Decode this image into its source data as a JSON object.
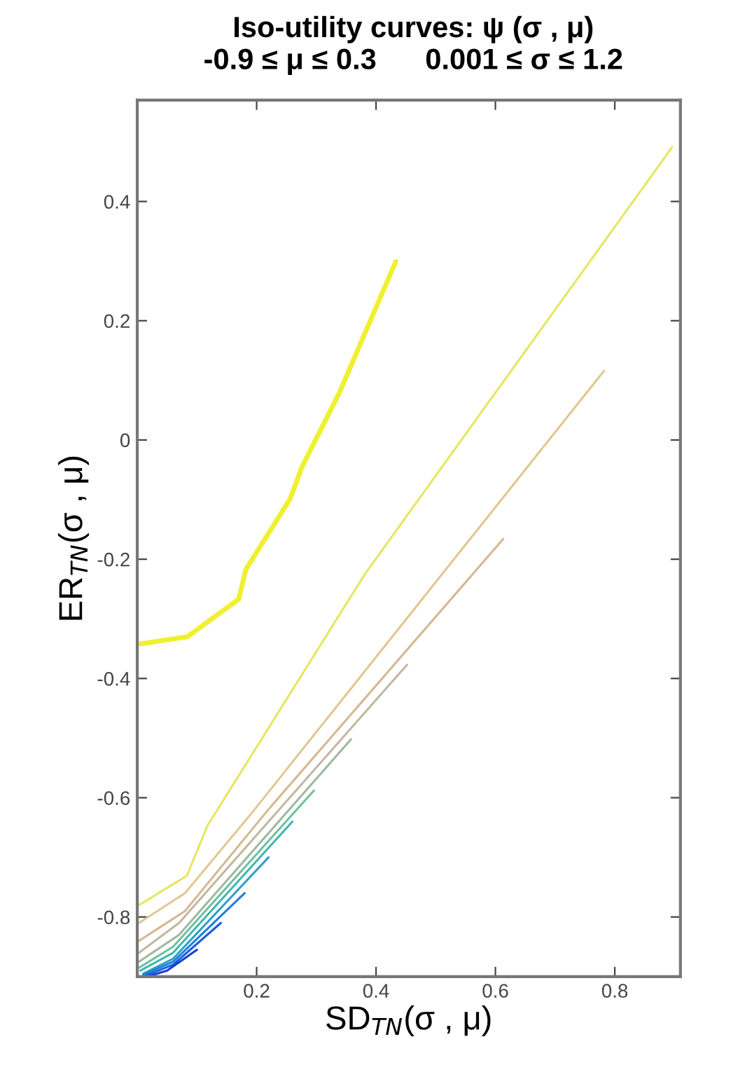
{
  "chart_data": {
    "type": "line",
    "title": "Iso-utility curves: ψ (σ , μ)",
    "subtitle": "-0.9 ≤ μ ≤ 0.3      0.001 ≤ σ ≤ 1.2",
    "xlabel": "SD$_{TN}$(σ , μ)",
    "ylabel": "ER$_{TN}$(σ , μ)",
    "xlim": [
      0,
      0.91
    ],
    "ylim": [
      -0.9,
      0.57
    ],
    "xticks": [
      0.2,
      0.4,
      0.6,
      0.8
    ],
    "yticks": [
      -0.8,
      -0.6,
      -0.4,
      -0.2,
      0,
      0.2,
      0.4
    ],
    "grid": false,
    "line_style": "solid",
    "series": [
      {
        "color": "#f0f030",
        "x": [
          0.005,
          0.084,
          0.17,
          0.182,
          0.256,
          0.276,
          0.339,
          0.366,
          0.433
        ],
        "values": [
          -0.342,
          -0.33,
          -0.267,
          -0.217,
          -0.099,
          -0.045,
          0.08,
          0.143,
          0.299
        ]
      },
      {
        "color": "#e6e660",
        "x": [
          0.003,
          0.083,
          0.118,
          0.382,
          0.896
        ],
        "values": [
          -0.78,
          -0.731,
          -0.646,
          -0.224,
          0.491
        ]
      },
      {
        "color": "#e0c890",
        "x": [
          0.003,
          0.08,
          0.194,
          0.782
        ],
        "values": [
          -0.81,
          -0.76,
          -0.623,
          0.116
        ]
      },
      {
        "color": "#d4b890",
        "x": [
          0.003,
          0.08,
          0.217,
          0.613
        ],
        "values": [
          -0.84,
          -0.79,
          -0.623,
          -0.166
        ]
      },
      {
        "color": "#c0b8a0",
        "x": [
          0.003,
          0.07,
          0.452
        ],
        "values": [
          -0.86,
          -0.81,
          -0.377
        ]
      },
      {
        "color": "#a0b8a0",
        "x": [
          0.003,
          0.07,
          0.358
        ],
        "values": [
          -0.875,
          -0.83,
          -0.502
        ]
      },
      {
        "color": "#70c0a0",
        "x": [
          0.003,
          0.06,
          0.296
        ],
        "values": [
          -0.885,
          -0.85,
          -0.588
        ]
      },
      {
        "color": "#40b8b0",
        "x": [
          0.005,
          0.06,
          0.26
        ],
        "values": [
          -0.89,
          -0.86,
          -0.64
        ]
      },
      {
        "color": "#30a0c8",
        "x": [
          0.01,
          0.06,
          0.22
        ],
        "values": [
          -0.895,
          -0.87,
          -0.7
        ]
      },
      {
        "color": "#2080d8",
        "x": [
          0.01,
          0.06,
          0.18
        ],
        "values": [
          -0.897,
          -0.875,
          -0.76
        ]
      },
      {
        "color": "#1860e0",
        "x": [
          0.015,
          0.06,
          0.14
        ],
        "values": [
          -0.898,
          -0.88,
          -0.81
        ]
      },
      {
        "color": "#1040d0",
        "x": [
          0.02,
          0.05,
          0.1
        ],
        "values": [
          -0.899,
          -0.89,
          -0.855
        ]
      }
    ]
  }
}
